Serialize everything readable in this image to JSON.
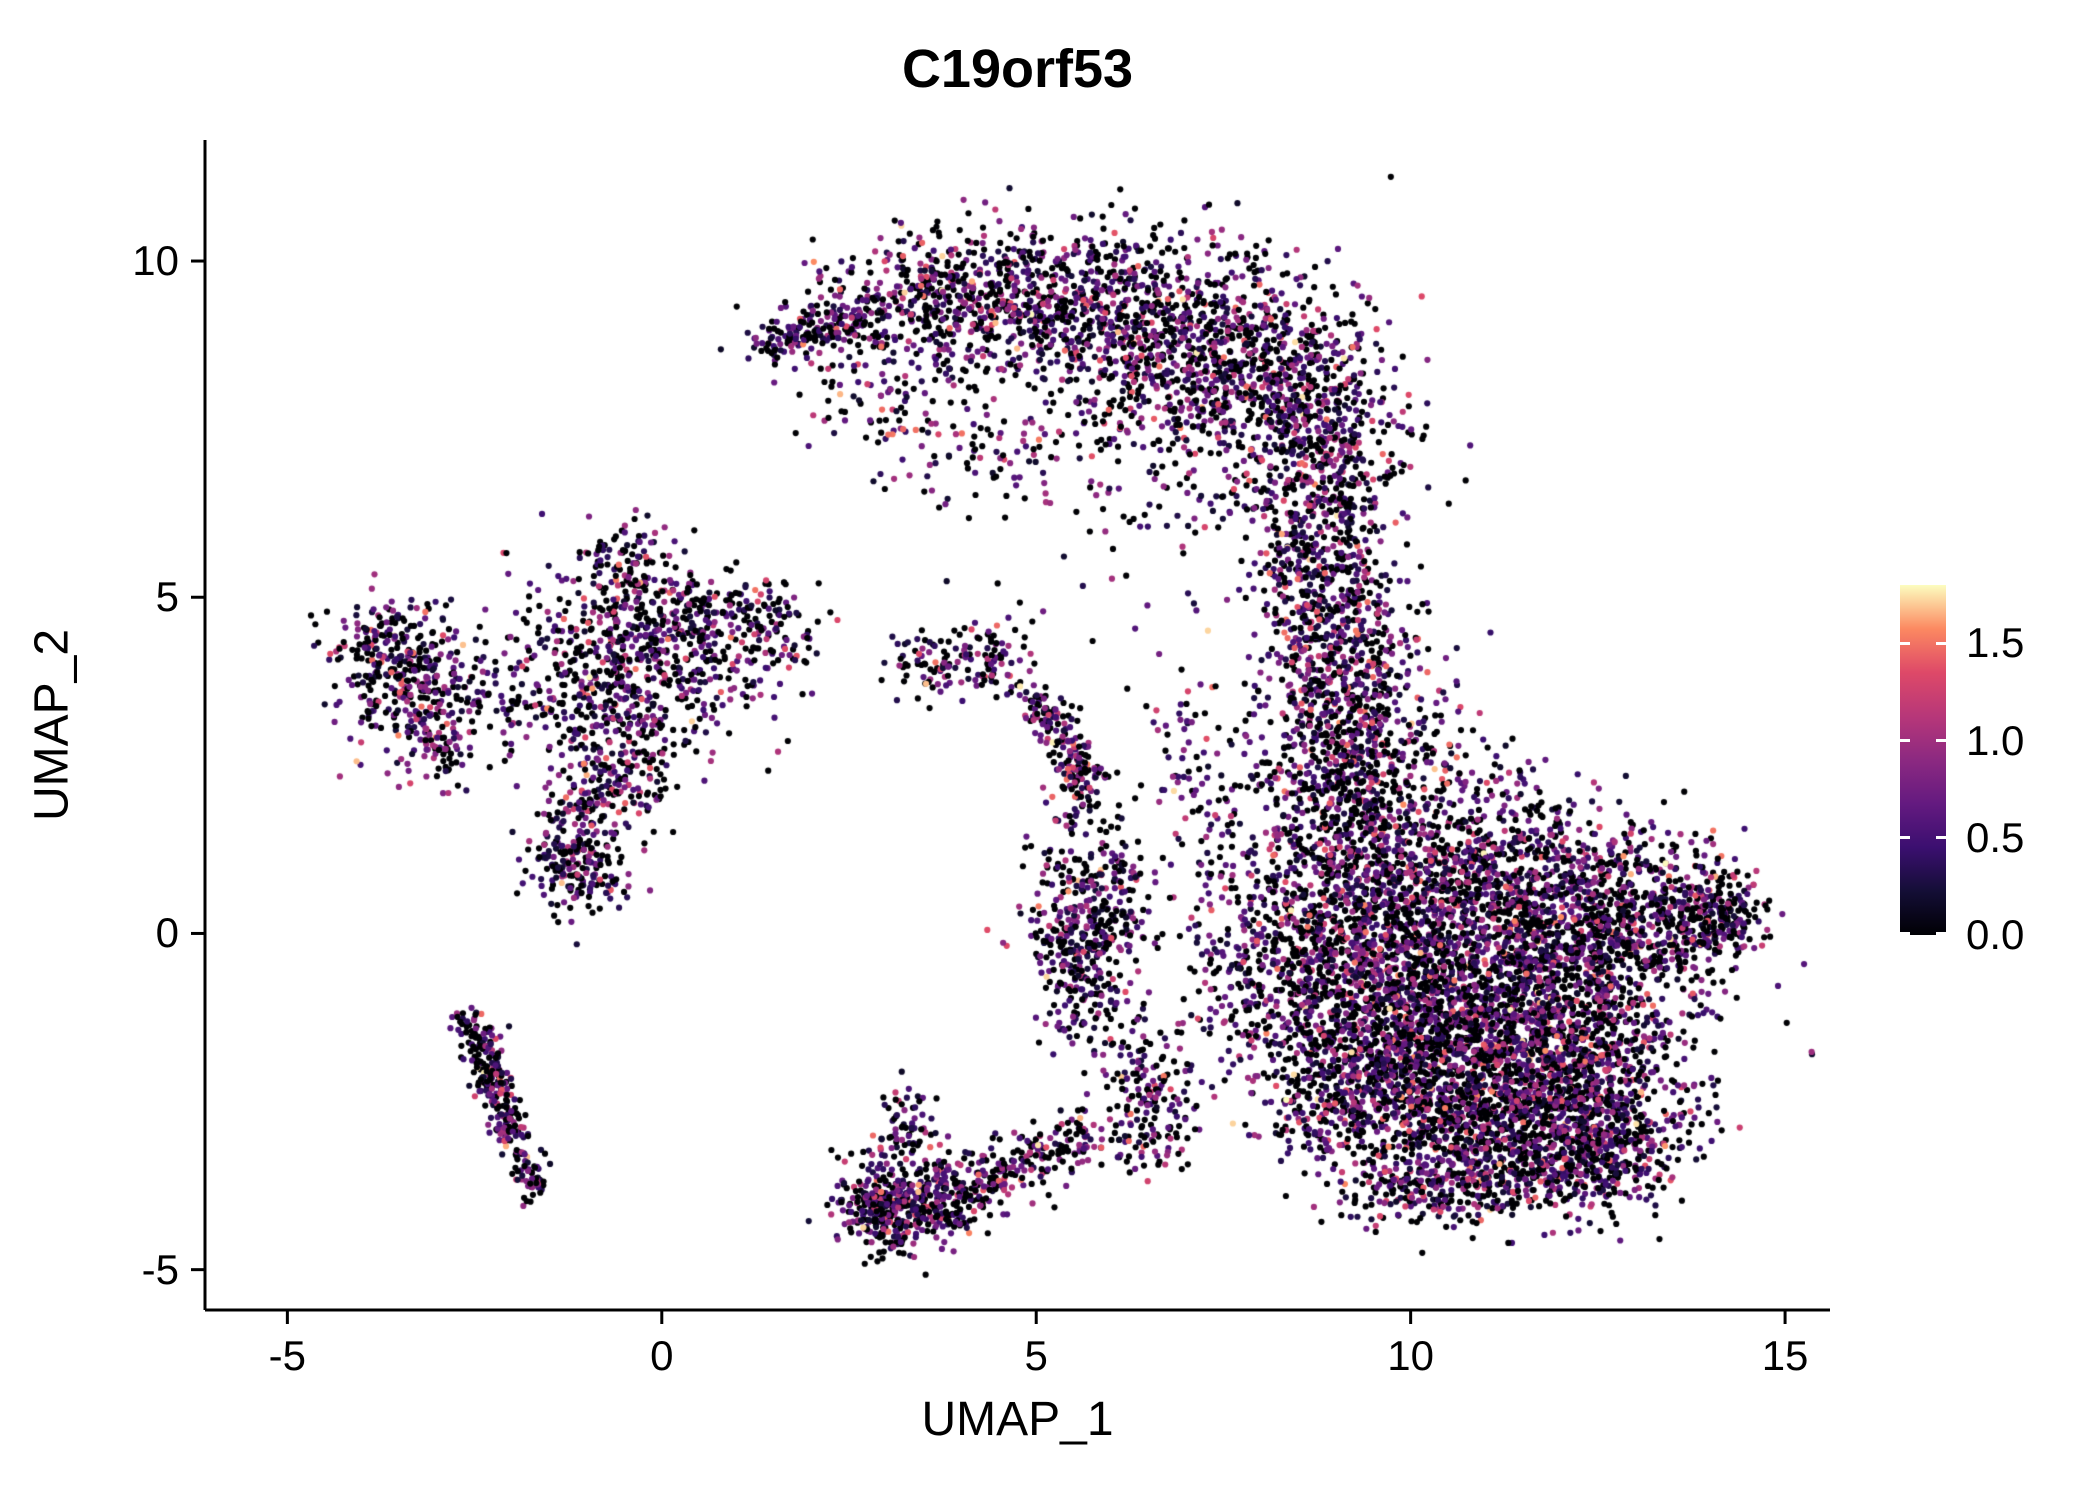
{
  "chart_data": {
    "type": "scatter",
    "subtype": "umap-feature-plot",
    "title": "C19orf53",
    "xlabel": "UMAP_1",
    "ylabel": "UMAP_2",
    "grid": false,
    "legend_position": "right",
    "xlim": [
      -6.1,
      15.6
    ],
    "ylim": [
      -5.6,
      11.8
    ],
    "x_ticks": [
      -5,
      0,
      5,
      10,
      15
    ],
    "x_tick_labels": [
      "-5",
      "0",
      "5",
      "10",
      "15"
    ],
    "y_ticks": [
      -5,
      0,
      5,
      10
    ],
    "y_tick_labels": [
      "-5",
      "0",
      "5",
      "10"
    ],
    "point_radius_px": 3.1,
    "seed": 42,
    "total_points": 15485,
    "colormap": "magma",
    "colormap_stops": [
      {
        "t": 0.0,
        "color": "#000004"
      },
      {
        "t": 0.125,
        "color": "#140e36"
      },
      {
        "t": 0.25,
        "color": "#3b0f70"
      },
      {
        "t": 0.375,
        "color": "#641a80"
      },
      {
        "t": 0.5,
        "color": "#8c2981"
      },
      {
        "t": 0.625,
        "color": "#b73779"
      },
      {
        "t": 0.75,
        "color": "#de4968"
      },
      {
        "t": 0.875,
        "color": "#fc8961"
      },
      {
        "t": 1.0,
        "color": "#fcfdbf"
      }
    ],
    "color_scale": {
      "min": 0.0,
      "max": 1.8,
      "ticks": [
        0.0,
        0.5,
        1.0,
        1.5
      ],
      "tick_labels": [
        "0.0",
        "0.5",
        "1.0",
        "1.5"
      ]
    },
    "expression_levels": [
      {
        "p": 0.42,
        "min": 0.0,
        "max": 0.0
      },
      {
        "p": 0.33,
        "min": 0.15,
        "max": 0.7
      },
      {
        "p": 0.17,
        "min": 0.7,
        "max": 1.1
      },
      {
        "p": 0.07,
        "min": 1.1,
        "max": 1.5
      },
      {
        "p": 0.01,
        "min": 1.5,
        "max": 1.8
      }
    ],
    "clusters": [
      {
        "t": "l",
        "x1": 1.25,
        "y1": 8.7,
        "x2": 2.6,
        "y2": 9.15,
        "j": 0.18,
        "n": 150
      },
      {
        "t": "g",
        "x": 3.2,
        "y": 9.3,
        "sx": 0.7,
        "sy": 0.5,
        "n": 280
      },
      {
        "t": "g",
        "x": 4.5,
        "y": 9.6,
        "sx": 0.8,
        "sy": 0.5,
        "n": 320
      },
      {
        "t": "g",
        "x": 5.8,
        "y": 9.3,
        "sx": 0.85,
        "sy": 0.6,
        "n": 400
      },
      {
        "t": "g",
        "x": 7.0,
        "y": 8.7,
        "sx": 0.9,
        "sy": 0.75,
        "n": 520
      },
      {
        "t": "g",
        "x": 8.2,
        "y": 8.1,
        "sx": 0.75,
        "sy": 0.85,
        "n": 520
      },
      {
        "t": "g",
        "x": 8.9,
        "y": 7.1,
        "sx": 0.55,
        "sy": 0.75,
        "n": 330
      },
      {
        "t": "g",
        "x": 8.7,
        "y": 6.0,
        "sx": 0.5,
        "sy": 0.55,
        "n": 170
      },
      {
        "t": "g",
        "x": 5.6,
        "y": 8.0,
        "sx": 1.3,
        "sy": 0.8,
        "n": 170
      },
      {
        "t": "g",
        "x": 3.0,
        "y": 7.9,
        "sx": 0.6,
        "sy": 0.6,
        "n": 90
      },
      {
        "t": "g",
        "x": 4.3,
        "y": 7.2,
        "sx": 0.5,
        "sy": 0.4,
        "n": 45
      },
      {
        "t": "g",
        "x": 8.9,
        "y": 5.0,
        "sx": 0.5,
        "sy": 0.6,
        "n": 220
      },
      {
        "t": "g",
        "x": 9.1,
        "y": 4.0,
        "sx": 0.55,
        "sy": 0.6,
        "n": 280
      },
      {
        "t": "g",
        "x": 9.2,
        "y": 3.0,
        "sx": 0.55,
        "sy": 0.6,
        "n": 300
      },
      {
        "t": "g",
        "x": 9.0,
        "y": 2.0,
        "sx": 0.6,
        "sy": 0.55,
        "n": 280
      },
      {
        "t": "g",
        "x": 10.2,
        "y": 2.2,
        "sx": 0.7,
        "sy": 0.8,
        "n": 110
      },
      {
        "t": "g",
        "x": 10.9,
        "y": 1.8,
        "sx": 0.6,
        "sy": 0.5,
        "n": 50
      },
      {
        "t": "g",
        "x": -3.35,
        "y": 3.8,
        "sx": 0.5,
        "sy": 0.55,
        "n": 300
      },
      {
        "t": "g",
        "x": -3.9,
        "y": 4.35,
        "sx": 0.3,
        "sy": 0.3,
        "n": 70
      },
      {
        "t": "g",
        "x": -2.95,
        "y": 2.85,
        "sx": 0.35,
        "sy": 0.35,
        "n": 80
      },
      {
        "t": "g",
        "x": -2.2,
        "y": 3.6,
        "sx": 0.4,
        "sy": 0.5,
        "n": 60
      },
      {
        "t": "g",
        "x": -0.2,
        "y": 4.55,
        "sx": 0.85,
        "sy": 0.5,
        "n": 430
      },
      {
        "t": "g",
        "x": 1.2,
        "y": 4.55,
        "sx": 0.5,
        "sy": 0.35,
        "n": 110
      },
      {
        "t": "g",
        "x": -0.45,
        "y": 5.5,
        "sx": 0.3,
        "sy": 0.35,
        "n": 80
      },
      {
        "t": "g",
        "x": -0.9,
        "y": 3.6,
        "sx": 0.5,
        "sy": 0.5,
        "n": 160
      },
      {
        "t": "g",
        "x": -0.55,
        "y": 2.7,
        "sx": 0.4,
        "sy": 0.5,
        "n": 150
      },
      {
        "t": "g",
        "x": -0.95,
        "y": 1.7,
        "sx": 0.4,
        "sy": 0.55,
        "n": 170
      },
      {
        "t": "g",
        "x": -1.15,
        "y": 0.95,
        "sx": 0.3,
        "sy": 0.3,
        "n": 130
      },
      {
        "t": "g",
        "x": 0.3,
        "y": 3.5,
        "sx": 0.55,
        "sy": 0.6,
        "n": 110
      },
      {
        "t": "g",
        "x": 3.65,
        "y": 4.0,
        "sx": 0.35,
        "sy": 0.25,
        "n": 70
      },
      {
        "t": "g",
        "x": 4.4,
        "y": 4.1,
        "sx": 0.3,
        "sy": 0.35,
        "n": 80
      },
      {
        "t": "l",
        "x1": 5.0,
        "y1": 3.5,
        "x2": 5.75,
        "y2": 2.15,
        "j": 0.16,
        "n": 190
      },
      {
        "t": "l",
        "x1": -2.62,
        "y1": -1.15,
        "x2": -1.68,
        "y2": -3.8,
        "j": 0.12,
        "n": 260
      },
      {
        "t": "g",
        "x": -2.3,
        "y": -2.0,
        "sx": 0.15,
        "sy": 0.25,
        "n": 50
      },
      {
        "t": "g",
        "x": 3.0,
        "y": -4.1,
        "sx": 0.35,
        "sy": 0.3,
        "n": 280
      },
      {
        "t": "g",
        "x": 3.7,
        "y": -3.95,
        "sx": 0.45,
        "sy": 0.3,
        "n": 240
      },
      {
        "t": "l",
        "x1": 4.2,
        "y1": -3.75,
        "x2": 5.6,
        "y2": -3.0,
        "j": 0.22,
        "n": 170
      },
      {
        "t": "g",
        "x": 3.2,
        "y": -3.3,
        "sx": 0.25,
        "sy": 0.4,
        "n": 60
      },
      {
        "t": "g",
        "x": 3.3,
        "y": -2.7,
        "sx": 0.2,
        "sy": 0.3,
        "n": 30
      },
      {
        "t": "g",
        "x": 5.55,
        "y": -0.05,
        "sx": 0.4,
        "sy": 0.5,
        "n": 260
      },
      {
        "t": "g",
        "x": 5.95,
        "y": 0.7,
        "sx": 0.3,
        "sy": 0.35,
        "n": 80
      },
      {
        "t": "g",
        "x": 5.8,
        "y": -1.1,
        "sx": 0.35,
        "sy": 0.45,
        "n": 90
      },
      {
        "t": "l",
        "x1": 6.1,
        "y1": -1.7,
        "x2": 7.0,
        "y2": -2.7,
        "j": 0.25,
        "n": 110
      },
      {
        "t": "g",
        "x": 6.3,
        "y": -3.0,
        "sx": 0.4,
        "sy": 0.35,
        "n": 80
      },
      {
        "t": "g",
        "x": 5.5,
        "y": 1.4,
        "sx": 0.3,
        "sy": 0.5,
        "n": 50
      },
      {
        "t": "g",
        "x": 7.3,
        "y": 0.4,
        "sx": 0.7,
        "sy": 0.8,
        "n": 100
      },
      {
        "t": "g",
        "x": 7.7,
        "y": -1.3,
        "sx": 0.5,
        "sy": 0.6,
        "n": 80
      },
      {
        "t": "g",
        "x": 7.2,
        "y": 2.0,
        "sx": 0.5,
        "sy": 0.5,
        "n": 50
      },
      {
        "t": "g",
        "x": 6.9,
        "y": 3.0,
        "sx": 0.3,
        "sy": 0.4,
        "n": 25
      },
      {
        "t": "g",
        "x": 7.0,
        "y": 4.6,
        "sx": 1.1,
        "sy": 1.0,
        "n": 25
      },
      {
        "t": "g",
        "x": 6.5,
        "y": 6.3,
        "sx": 0.8,
        "sy": 0.6,
        "n": 30
      },
      {
        "t": "g",
        "x": 9.2,
        "y": 0.4,
        "sx": 0.75,
        "sy": 0.9,
        "n": 520
      },
      {
        "t": "g",
        "x": 10.3,
        "y": 0.5,
        "sx": 0.9,
        "sy": 0.8,
        "n": 620
      },
      {
        "t": "g",
        "x": 11.4,
        "y": 0.4,
        "sx": 0.9,
        "sy": 0.8,
        "n": 620
      },
      {
        "t": "g",
        "x": 12.5,
        "y": 0.3,
        "sx": 0.8,
        "sy": 0.7,
        "n": 520
      },
      {
        "t": "g",
        "x": 13.5,
        "y": 0.25,
        "sx": 0.55,
        "sy": 0.5,
        "n": 300
      },
      {
        "t": "g",
        "x": 14.15,
        "y": 0.3,
        "sx": 0.3,
        "sy": 0.3,
        "n": 120
      },
      {
        "t": "g",
        "x": 8.6,
        "y": -0.6,
        "sx": 0.5,
        "sy": 0.7,
        "n": 260
      },
      {
        "t": "g",
        "x": 9.8,
        "y": -1.1,
        "sx": 0.85,
        "sy": 0.7,
        "n": 520
      },
      {
        "t": "g",
        "x": 11.0,
        "y": -1.3,
        "sx": 0.95,
        "sy": 0.7,
        "n": 620
      },
      {
        "t": "g",
        "x": 12.2,
        "y": -1.4,
        "sx": 0.85,
        "sy": 0.65,
        "n": 520
      },
      {
        "t": "g",
        "x": 9.5,
        "y": -2.1,
        "sx": 0.6,
        "sy": 0.6,
        "n": 260
      },
      {
        "t": "g",
        "x": 10.4,
        "y": -2.3,
        "sx": 0.85,
        "sy": 0.6,
        "n": 460
      },
      {
        "t": "g",
        "x": 11.6,
        "y": -2.5,
        "sx": 0.85,
        "sy": 0.55,
        "n": 460
      },
      {
        "t": "g",
        "x": 12.6,
        "y": -2.7,
        "sx": 0.65,
        "sy": 0.55,
        "n": 300
      },
      {
        "t": "g",
        "x": 8.8,
        "y": -2.7,
        "sx": 0.5,
        "sy": 0.5,
        "n": 150
      },
      {
        "t": "g",
        "x": 10.9,
        "y": -3.4,
        "sx": 0.75,
        "sy": 0.4,
        "n": 300
      },
      {
        "t": "g",
        "x": 12.0,
        "y": -3.5,
        "sx": 0.6,
        "sy": 0.35,
        "n": 220
      },
      {
        "t": "g",
        "x": 10.1,
        "y": -3.9,
        "sx": 0.6,
        "sy": 0.25,
        "n": 130
      },
      {
        "t": "g",
        "x": 12.7,
        "y": -3.3,
        "sx": 0.4,
        "sy": 0.3,
        "n": 90
      }
    ]
  }
}
